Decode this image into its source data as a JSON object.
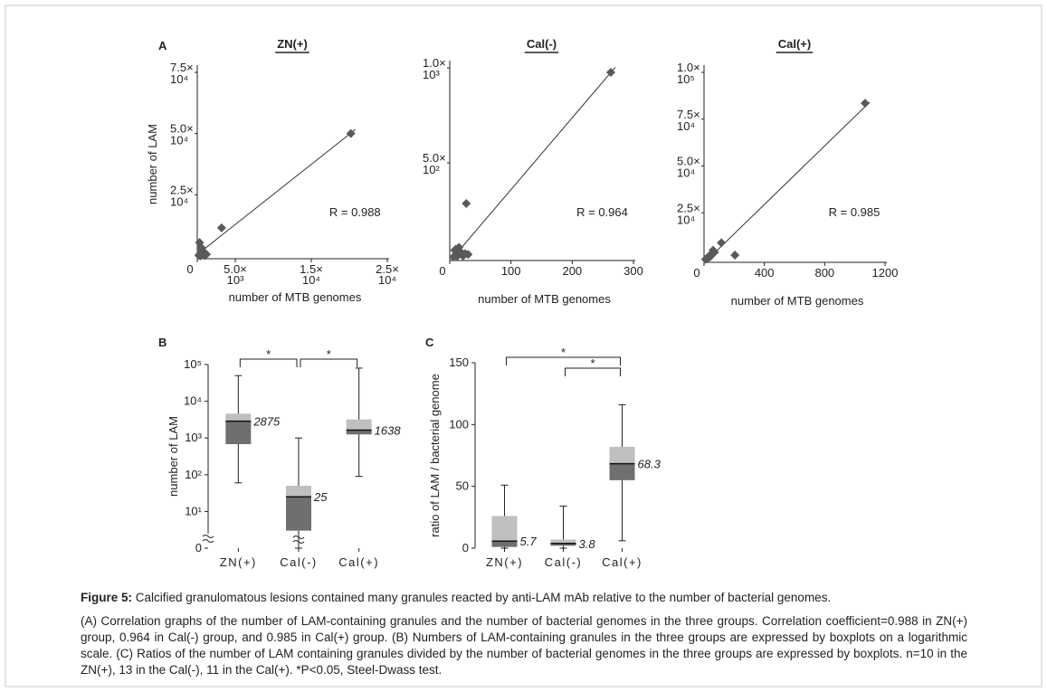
{
  "chart_data": [
    {
      "type": "scatter",
      "panel": "A",
      "title": "ZN(+)",
      "xlabel": "number of MTB genomes",
      "ylabel": "number of LAM",
      "annotation": "R = 0.988",
      "color": "#595959",
      "trendline": true,
      "xlim": [
        0,
        25000
      ],
      "ylim": [
        0,
        75000
      ],
      "xticks": [
        0,
        {
          "value": 5000,
          "label": "5.0×10³"
        },
        {
          "value": 15000,
          "label": "1.5×10⁴"
        },
        {
          "value": 25000,
          "label": "2.5×10⁴"
        }
      ],
      "yticks": [
        {
          "value": 25000,
          "label": "2.5×10⁴"
        },
        {
          "value": 50000,
          "label": "5.0×10⁴"
        },
        {
          "value": 75000,
          "label": "7.5×10⁴"
        }
      ],
      "x": [
        20200,
        3200,
        300,
        500,
        800,
        1200,
        200,
        600,
        1000,
        400
      ],
      "values": [
        50000,
        11500,
        5500,
        3500,
        1500,
        700,
        300,
        2500,
        200,
        0
      ]
    },
    {
      "type": "scatter",
      "title": "Cal(-)",
      "xlabel": "number of MTB genomes",
      "annotation": "R = 0.964",
      "color": "#595959",
      "trendline": true,
      "xlim": [
        0,
        300
      ],
      "ylim": [
        0,
        1000
      ],
      "xticks": [
        0,
        100,
        200,
        300
      ],
      "yticks": [
        {
          "value": 500,
          "label": "5.0×10²"
        },
        {
          "value": 1000,
          "label": "1.0×10³"
        }
      ],
      "x": [
        263,
        27,
        10,
        14,
        18,
        20,
        25,
        12,
        8,
        15,
        22,
        6,
        30
      ],
      "values": [
        976,
        286,
        45,
        20,
        30,
        15,
        22,
        8,
        40,
        55,
        10,
        5,
        18
      ]
    },
    {
      "type": "scatter",
      "title": "Cal(+)",
      "xlabel": "number of MTB genomes",
      "annotation": "R = 0.985",
      "color": "#595959",
      "trendline": true,
      "xlim": [
        0,
        1200
      ],
      "ylim": [
        0,
        100000
      ],
      "xticks": [
        0,
        400,
        800,
        1200
      ],
      "yticks": [
        {
          "value": 25000,
          "label": "2.5×10⁴"
        },
        {
          "value": 50000,
          "label": "5.0×10⁴"
        },
        {
          "value": 75000,
          "label": "7.5×10⁴"
        },
        {
          "value": 100000,
          "label": "1.0×10⁵"
        }
      ],
      "x": [
        1068,
        115,
        205,
        60,
        50,
        40,
        25,
        35,
        15,
        70,
        10
      ],
      "values": [
        83500,
        9000,
        2400,
        5000,
        3000,
        1500,
        800,
        2000,
        500,
        4000,
        200
      ]
    },
    {
      "type": "box",
      "panel": "B",
      "ylabel": "number of LAM",
      "yscale": "log",
      "ylim": [
        1,
        100000
      ],
      "yticks": [
        0,
        {
          "value": 10,
          "label": "10¹"
        },
        {
          "value": 100,
          "label": "10²"
        },
        {
          "value": 1000,
          "label": "10³"
        },
        {
          "value": 10000,
          "label": "10⁴"
        },
        {
          "value": 100000,
          "label": "10⁵"
        }
      ],
      "categories": [
        "ZN(+)",
        "Cal(-)",
        "Cal(+)"
      ],
      "whisker_low": [
        60,
        0,
        90
      ],
      "q1": [
        680,
        3,
        1250
      ],
      "median": [
        2875,
        25,
        1638
      ],
      "q3": [
        4600,
        50,
        3200
      ],
      "whisker_high": [
        50000,
        1000,
        80000
      ],
      "color_lower": "#6f6f6f",
      "color_upper": "#bfbfbf",
      "significance": [
        {
          "pair": [
            0,
            1
          ],
          "label": "*"
        },
        {
          "pair": [
            1,
            2
          ],
          "label": "*"
        }
      ]
    },
    {
      "type": "box",
      "panel": "C",
      "ylabel": "ratio of LAM / bacterial genome",
      "ylim": [
        0,
        150
      ],
      "yticks": [
        0,
        50,
        100,
        150
      ],
      "categories": [
        "ZN(+)",
        "Cal(-)",
        "Cal(+)"
      ],
      "whisker_low": [
        0,
        0,
        6
      ],
      "q1": [
        1,
        2,
        55
      ],
      "median": [
        5.7,
        3.8,
        68.3
      ],
      "q3": [
        26,
        7,
        82
      ],
      "whisker_high": [
        51,
        34,
        116
      ],
      "color_lower": "#6f6f6f",
      "color_upper": "#bfbfbf",
      "significance": [
        {
          "pair": [
            0,
            2
          ],
          "label": "*"
        },
        {
          "pair": [
            1,
            2
          ],
          "label": "*"
        }
      ]
    }
  ],
  "caption": {
    "label": "Figure 5:",
    "title": "Calcified granulomatous lesions contained many granules reacted by anti-LAM mAb relative to the number of bacterial genomes.",
    "text": "(A) Correlation graphs of the number of LAM-containing granules and the number of bacterial genomes in the three groups. Correlation coefficient=0.988 in ZN(+) group, 0.964 in Cal(-) group, and 0.985 in Cal(+) group. (B) Numbers of LAM-containing granules in the three groups are expressed by boxplots on a logarithmic scale. (C) Ratios of the number of LAM containing granules divided by the number of bacterial genomes in the three groups are expressed by boxplots. n=10 in the ZN(+), 13 in the Cal(-), 11 in the Cal(+). *P<0.05, Steel-Dwass test."
  }
}
